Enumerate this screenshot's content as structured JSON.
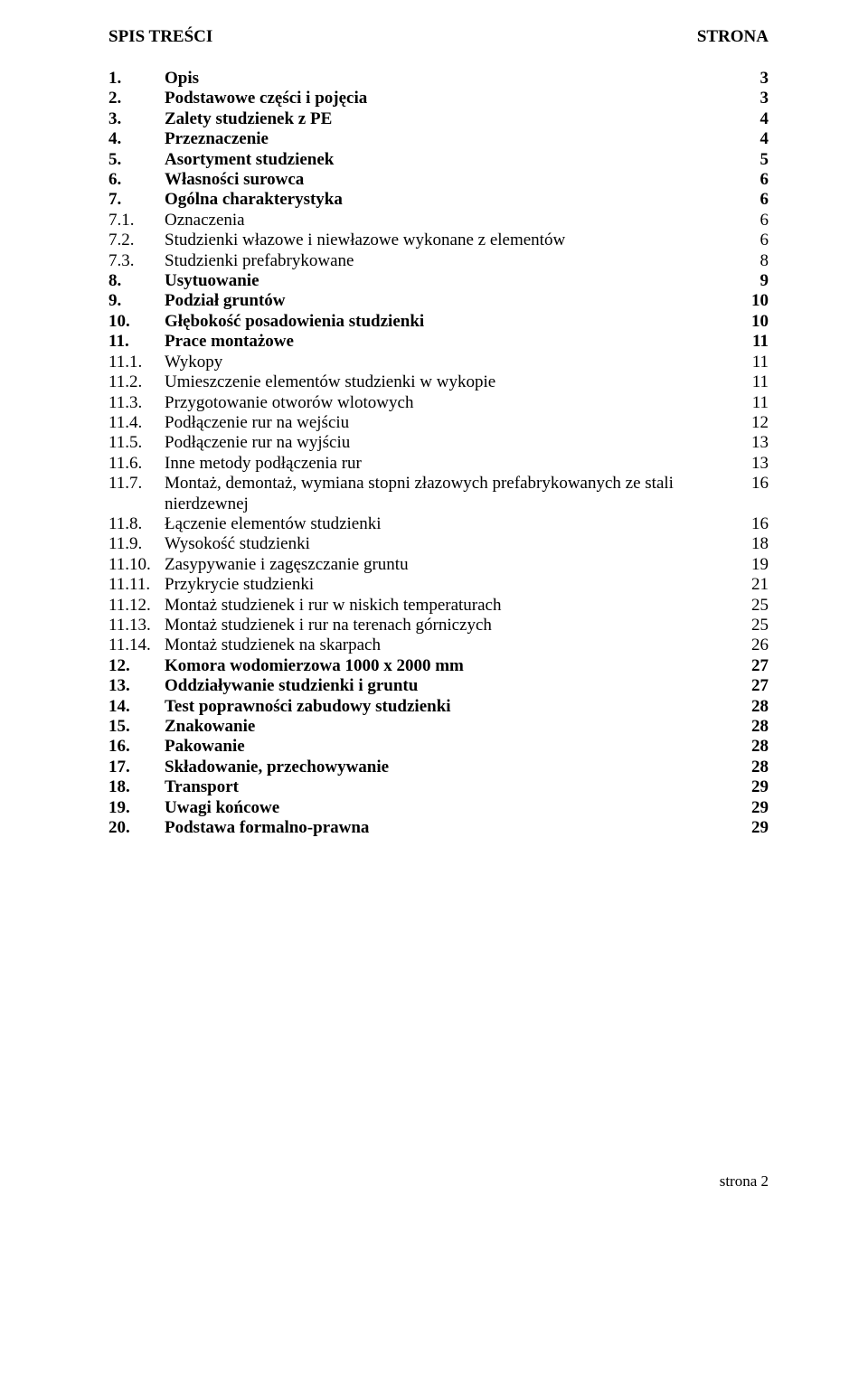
{
  "header": {
    "left": "SPIS TREŚCI",
    "right": "STRONA"
  },
  "toc": [
    {
      "num": "1.",
      "label": "Opis",
      "page": "3",
      "bold": true
    },
    {
      "num": "2.",
      "label": "Podstawowe części i pojęcia",
      "page": "3",
      "bold": true
    },
    {
      "num": "3.",
      "label": "Zalety studzienek z PE",
      "page": "4",
      "bold": true
    },
    {
      "num": "4.",
      "label": "Przeznaczenie",
      "page": "4",
      "bold": true
    },
    {
      "num": "5.",
      "label": "Asortyment studzienek",
      "page": "5",
      "bold": true
    },
    {
      "num": "6.",
      "label": "Własności surowca",
      "page": "6",
      "bold": true
    },
    {
      "num": "7.",
      "label": "Ogólna charakterystyka",
      "page": "6",
      "bold": true
    },
    {
      "num": "7.1.",
      "label": "Oznaczenia",
      "page": "6",
      "bold": false
    },
    {
      "num": "7.2.",
      "label": "Studzienki włazowe i niewłazowe wykonane z elementów",
      "page": "6",
      "bold": false
    },
    {
      "num": "7.3.",
      "label": "Studzienki prefabrykowane",
      "page": "8",
      "bold": false
    },
    {
      "num": "8.",
      "label": "Usytuowanie",
      "page": "9",
      "bold": true
    },
    {
      "num": "9.",
      "label": "Podział gruntów",
      "page": "10",
      "bold": true
    },
    {
      "num": "10.",
      "label": "Głębokość posadowienia studzienki",
      "page": "10",
      "bold": true
    },
    {
      "num": "11.",
      "label": "Prace montażowe",
      "page": "11",
      "bold": true
    },
    {
      "num": "11.1.",
      "label": "Wykopy",
      "page": "11",
      "bold": false
    },
    {
      "num": "11.2.",
      "label": "Umieszczenie elementów studzienki w wykopie",
      "page": "11",
      "bold": false
    },
    {
      "num": "11.3.",
      "label": "Przygotowanie otworów wlotowych",
      "page": "11",
      "bold": false
    },
    {
      "num": "11.4.",
      "label": "Podłączenie rur na wejściu",
      "page": "12",
      "bold": false
    },
    {
      "num": "11.5.",
      "label": "Podłączenie rur na wyjściu",
      "page": "13",
      "bold": false
    },
    {
      "num": "11.6.",
      "label": "Inne metody podłączenia rur",
      "page": "13",
      "bold": false
    },
    {
      "num": "11.7.",
      "label": "Montaż, demontaż, wymiana stopni złazowych prefabrykowanych ze stali nierdzewnej",
      "page": "16",
      "bold": false
    },
    {
      "num": "11.8.",
      "label": "Łączenie elementów studzienki",
      "page": "16",
      "bold": false
    },
    {
      "num": "11.9.",
      "label": "Wysokość studzienki",
      "page": "18",
      "bold": false
    },
    {
      "num": "11.10.",
      "label": "Zasypywanie i zagęszczanie gruntu",
      "page": "19",
      "bold": false
    },
    {
      "num": "11.11.",
      "label": "Przykrycie studzienki",
      "page": "21",
      "bold": false
    },
    {
      "num": "11.12.",
      "label": "Montaż studzienek i rur w niskich temperaturach",
      "page": "25",
      "bold": false
    },
    {
      "num": "11.13.",
      "label": "Montaż studzienek i rur na terenach górniczych",
      "page": "25",
      "bold": false
    },
    {
      "num": "11.14.",
      "label": "Montaż studzienek na skarpach",
      "page": "26",
      "bold": false
    },
    {
      "num": "12.",
      "label": "Komora wodomierzowa 1000 x 2000 mm",
      "page": "27",
      "bold": true
    },
    {
      "num": "13.",
      "label": "Oddziaływanie studzienki i gruntu",
      "page": "27",
      "bold": true
    },
    {
      "num": "14.",
      "label": "Test poprawności zabudowy studzienki",
      "page": "28",
      "bold": true
    },
    {
      "num": "15.",
      "label": "Znakowanie",
      "page": "28",
      "bold": true
    },
    {
      "num": "16.",
      "label": "Pakowanie",
      "page": "28",
      "bold": true
    },
    {
      "num": "17.",
      "label": "Składowanie, przechowywanie",
      "page": "28",
      "bold": true
    },
    {
      "num": "18.",
      "label": "Transport",
      "page": "29",
      "bold": true
    },
    {
      "num": "19.",
      "label": "Uwagi końcowe",
      "page": "29",
      "bold": true
    },
    {
      "num": "20.",
      "label": "Podstawa formalno-prawna",
      "page": "29",
      "bold": true
    }
  ],
  "footer": "strona 2"
}
